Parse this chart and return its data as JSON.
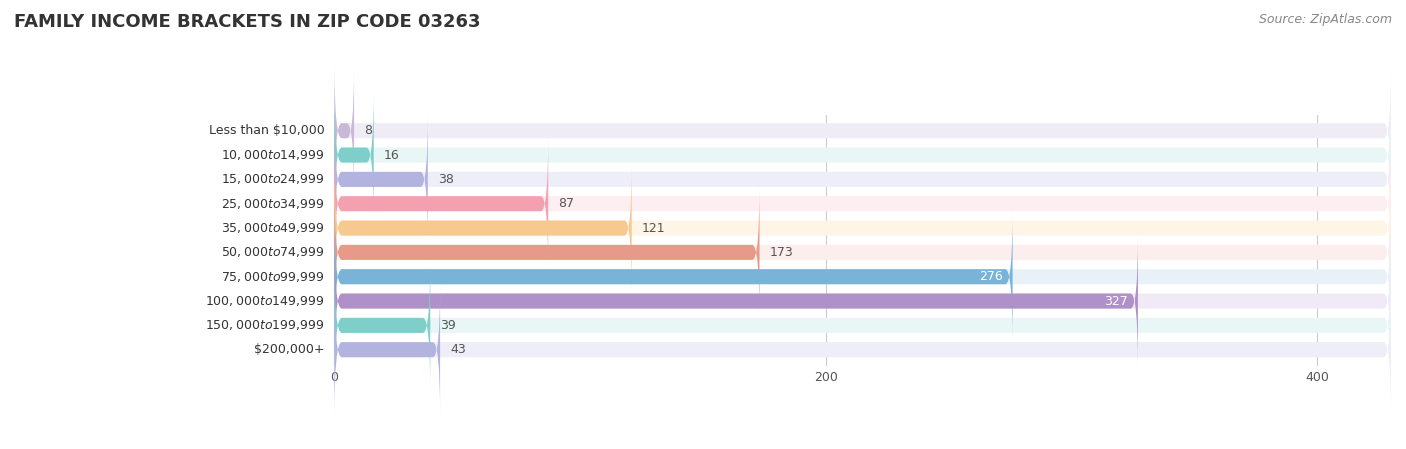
{
  "title": "FAMILY INCOME BRACKETS IN ZIP CODE 03263",
  "source": "Source: ZipAtlas.com",
  "categories": [
    "Less than $10,000",
    "$10,000 to $14,999",
    "$15,000 to $24,999",
    "$25,000 to $34,999",
    "$35,000 to $49,999",
    "$50,000 to $74,999",
    "$75,000 to $99,999",
    "$100,000 to $149,999",
    "$150,000 to $199,999",
    "$200,000+"
  ],
  "values": [
    8,
    16,
    38,
    87,
    121,
    173,
    276,
    327,
    39,
    43
  ],
  "bar_colors": [
    "#c9b8d8",
    "#7ececa",
    "#b3b3e0",
    "#f4a0b0",
    "#f7c990",
    "#e89a8a",
    "#7ab3d8",
    "#b090c8",
    "#7ececa",
    "#b3b3e0"
  ],
  "bar_bg_colors": [
    "#f0ecf5",
    "#e8f6f6",
    "#eeeef8",
    "#fceef1",
    "#fef5e7",
    "#fbeeec",
    "#e8f1f8",
    "#f0eaf6",
    "#e8f6f6",
    "#eeeef8"
  ],
  "xlim": [
    -130,
    430
  ],
  "data_xlim": [
    0,
    430
  ],
  "xticks": [
    0,
    200,
    400
  ],
  "label_color_dark": "#555555",
  "label_color_white": "#ffffff",
  "white_threshold": 200,
  "title_fontsize": 13,
  "source_fontsize": 9,
  "label_fontsize": 9,
  "value_fontsize": 9,
  "bar_height": 0.62,
  "background_color": "#ffffff",
  "grid_color": "#cccccc",
  "rounding_size": 3
}
